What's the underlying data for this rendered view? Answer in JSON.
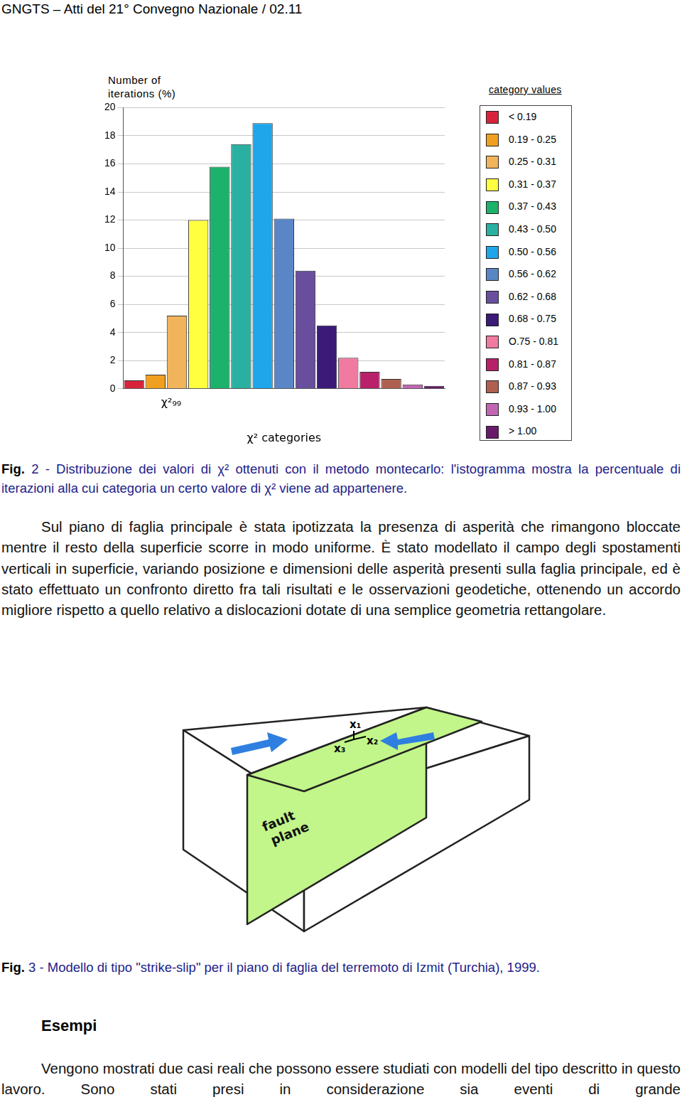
{
  "header": "GNGTS – Atti del 21° Convegno Nazionale / 02.11",
  "chart_data": {
    "type": "bar",
    "categories": [
      "< 0.19",
      "0.19 - 0.25",
      "0.25 - 0.31",
      "0.31 - 0.37",
      "0.37 - 0.43",
      "0.43 - 0.50",
      "0.50 - 0.56",
      "0.56 - 0.62",
      "0.62 - 0.68",
      "0.68 - 0.75",
      "O.75 - 0.81",
      "0.81 - 0.87",
      "0.87 - 0.93",
      "0.93 - 1.00",
      "> 1.00"
    ],
    "values": [
      0.6,
      1.0,
      5.2,
      12.0,
      15.8,
      17.4,
      18.9,
      12.1,
      8.4,
      4.5,
      2.2,
      1.2,
      0.7,
      0.3,
      0.2
    ],
    "colors": [
      "#d9233a",
      "#f0a020",
      "#f2b45a",
      "#ffff40",
      "#1db26b",
      "#2ab0a0",
      "#1ea5ea",
      "#5a86c6",
      "#6a4e9e",
      "#3b1a78",
      "#f07aa0",
      "#b8206a",
      "#b06050",
      "#c266b4",
      "#6a1a6a"
    ],
    "ylim": [
      0,
      20
    ],
    "yticks": [
      0,
      2,
      4,
      6,
      8,
      10,
      12,
      14,
      16,
      18,
      20
    ],
    "grid": true,
    "tick_labels": "y",
    "legend": "right",
    "legend_title": "category values",
    "y_label": "Number of iterations (%)",
    "x_label": "χ² categories",
    "annotations": [
      {
        "text": "χ²₉₉",
        "category": "0.25 - 0.31"
      }
    ]
  },
  "fig2_caption": {
    "label": "Fig.",
    "number": "2 -",
    "text": "Distribuzione dei valori di χ² ottenuti con il metodo montecarlo: l'istogramma mostra la percentuale di iterazioni alla cui categoria un certo valore di χ² viene ad appartenere."
  },
  "paragraph1": "Sul piano di faglia principale è stata ipotizzata la presenza di asperità che rimangono bloccate mentre il resto della superficie scorre in modo uniforme. È stato modellato il campo degli spostamenti verticali in superficie, variando posizione e dimensioni delle asperità presenti sulla faglia principale, ed è stato effettuato un confronto diretto fra tali risultati e le osservazioni geodetiche, ottenendo un accordo migliore rispetto a quello relativo a dislocazioni dotate di una semplice geometria rettangolare.",
  "diagram": {
    "axes": [
      "x₁",
      "x₂",
      "x₃"
    ],
    "plane_label": "fault plane"
  },
  "fig3_caption": {
    "label": "Fig.",
    "number": "3 -",
    "text": "Modello di tipo \"strike-slip\" per il piano di faglia del terremoto di Izmit (Turchia), 1999."
  },
  "section_title": "Esempi",
  "paragraph2": "Vengono mostrati due casi reali che possono essere studiati con modelli del tipo descritto in questo lavoro. Sono stati presi in considerazione sia eventi di grande"
}
